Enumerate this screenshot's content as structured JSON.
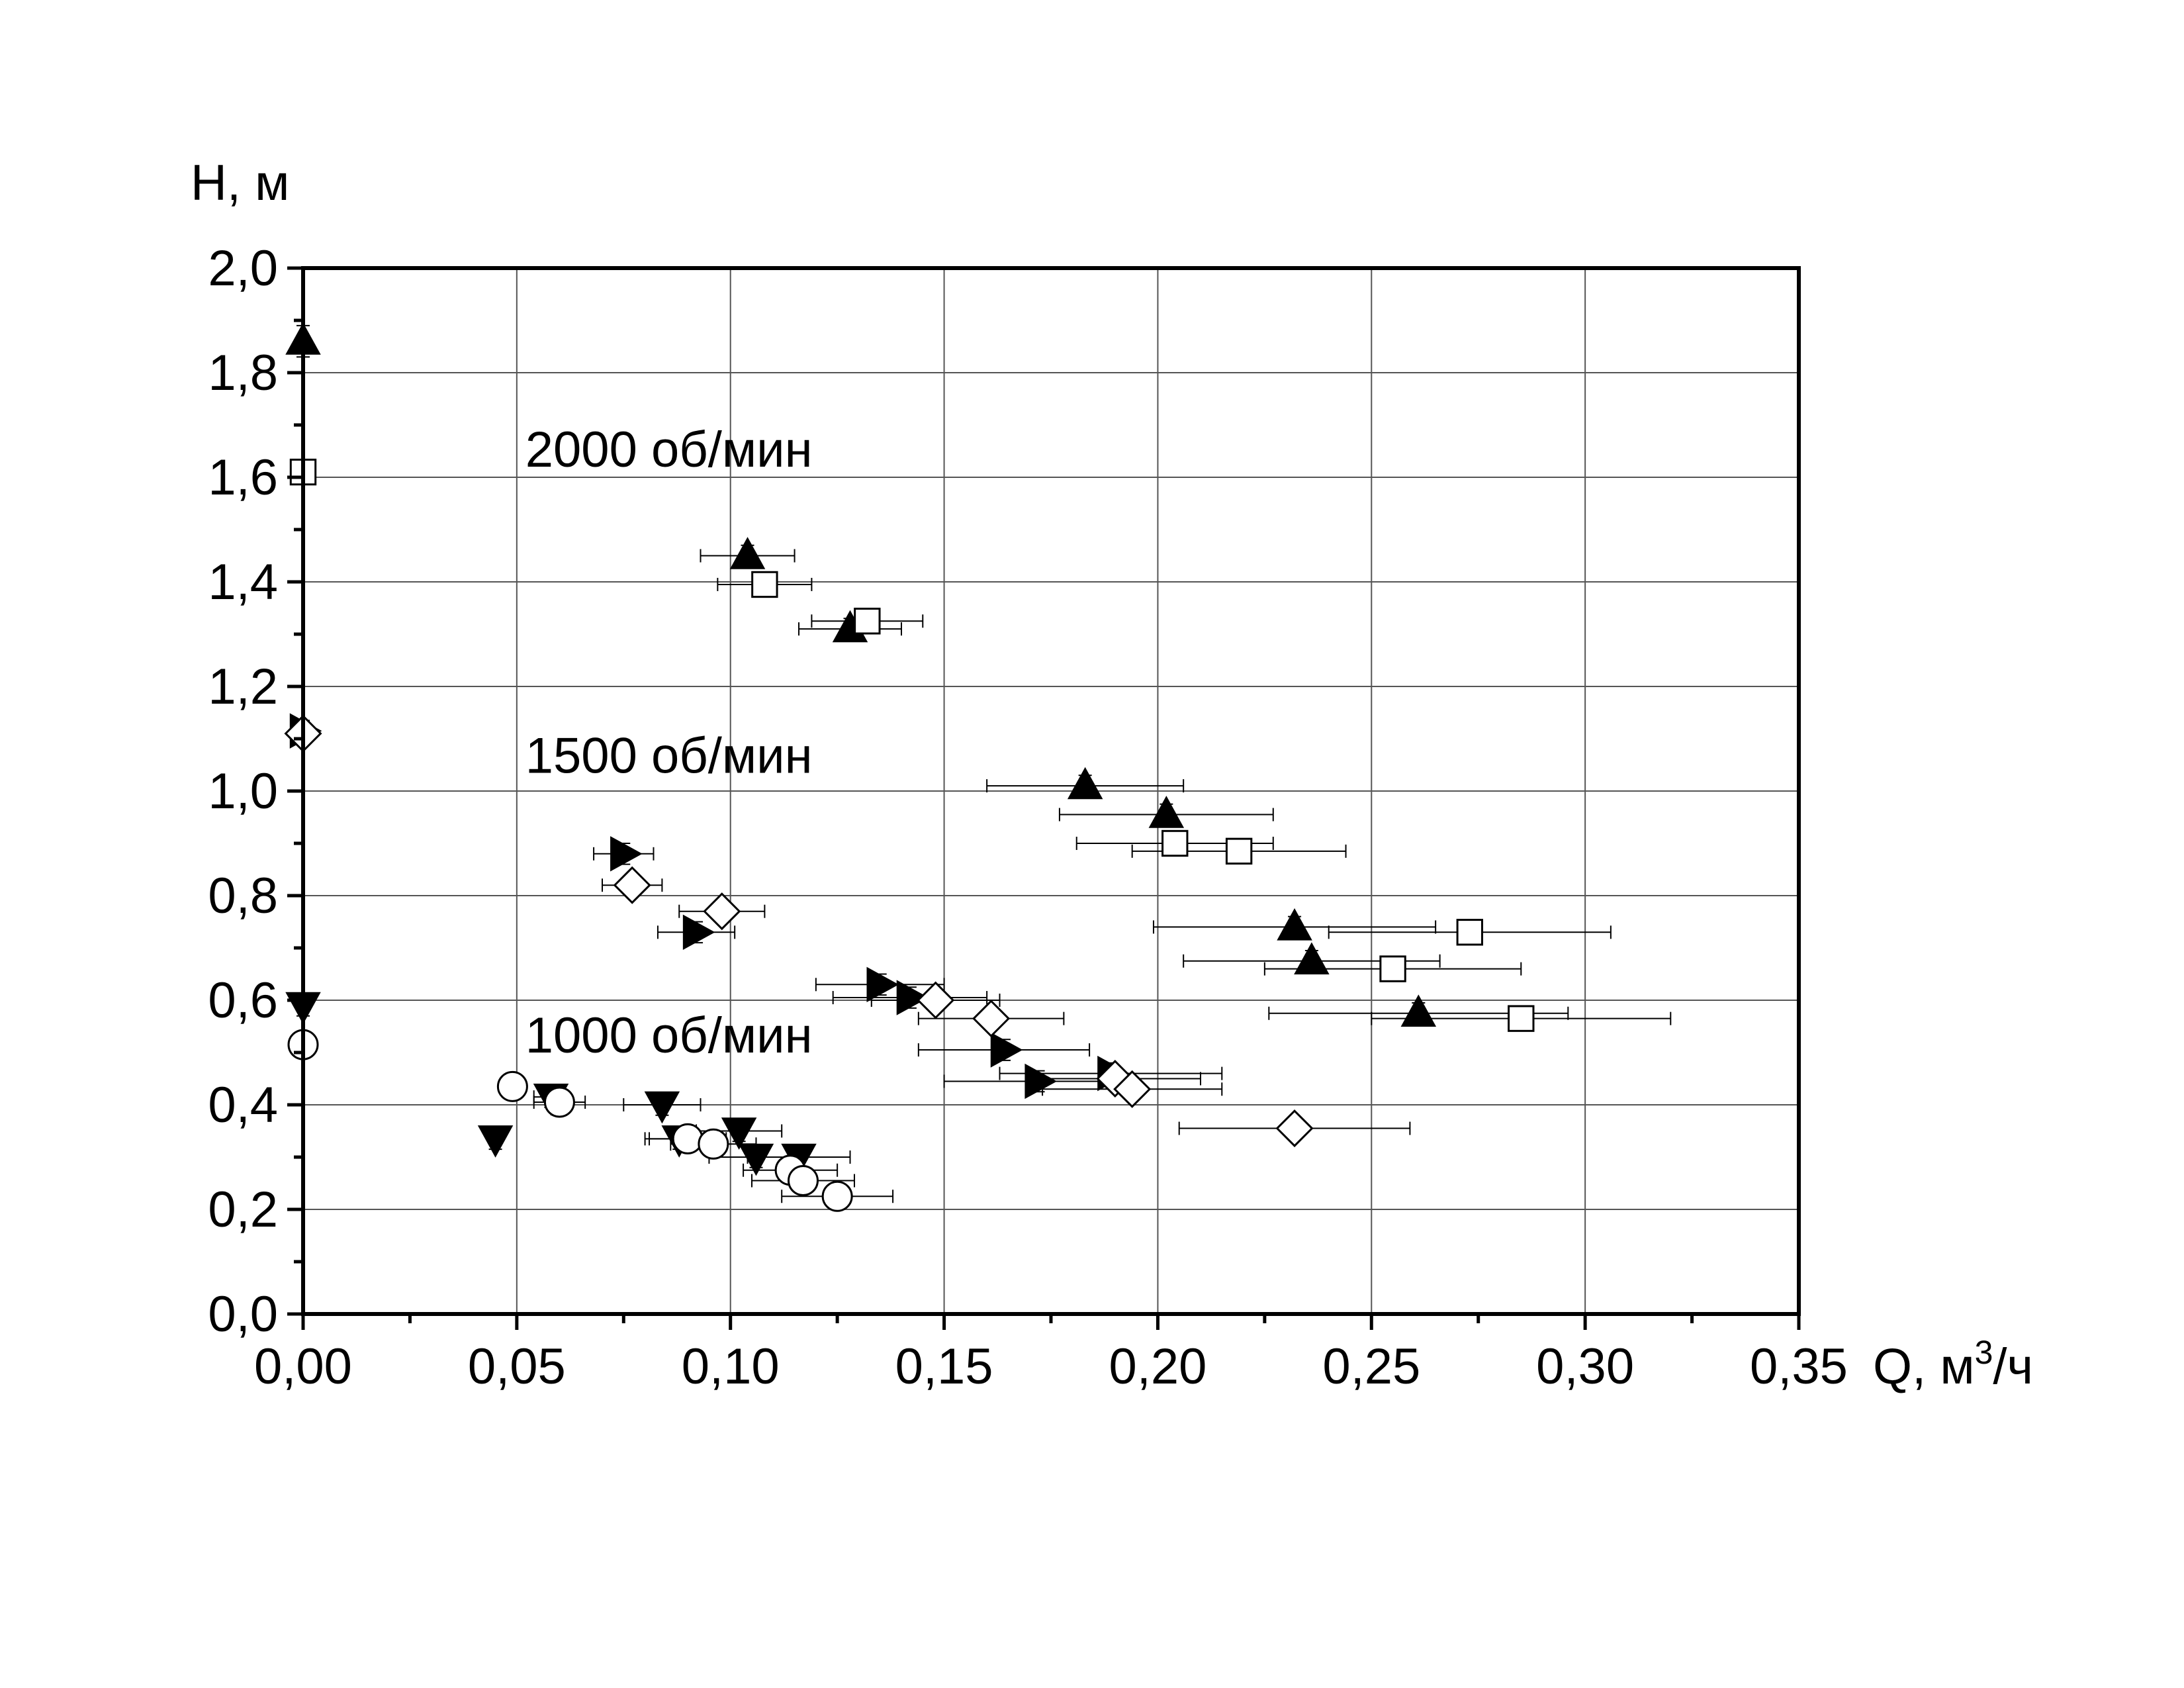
{
  "chart_data": {
    "type": "scatter",
    "xlabel": "Q, м³/ч",
    "ylabel": "H, м",
    "xlim": [
      0,
      0.35
    ],
    "ylim": [
      0,
      2.0
    ],
    "x_ticks": [
      {
        "v": 0.0,
        "label": "0,00"
      },
      {
        "v": 0.05,
        "label": "0,05"
      },
      {
        "v": 0.1,
        "label": "0,10"
      },
      {
        "v": 0.15,
        "label": "0,15"
      },
      {
        "v": 0.2,
        "label": "0,20"
      },
      {
        "v": 0.25,
        "label": "0,25"
      },
      {
        "v": 0.3,
        "label": "0,30"
      },
      {
        "v": 0.35,
        "label": "0,35"
      }
    ],
    "y_ticks": [
      {
        "v": 0.0,
        "label": "0,0"
      },
      {
        "v": 0.2,
        "label": "0,2"
      },
      {
        "v": 0.4,
        "label": "0,4"
      },
      {
        "v": 0.6,
        "label": "0,6"
      },
      {
        "v": 0.8,
        "label": "0,8"
      },
      {
        "v": 1.0,
        "label": "1,0"
      },
      {
        "v": 1.2,
        "label": "1,2"
      },
      {
        "v": 1.4,
        "label": "1,4"
      },
      {
        "v": 1.6,
        "label": "1,6"
      },
      {
        "v": 1.8,
        "label": "1,8"
      },
      {
        "v": 2.0,
        "label": "2,0"
      }
    ],
    "grid": true,
    "annotations": [
      {
        "text": "2000 об/мин",
        "x": 0.052,
        "y": 1.62
      },
      {
        "text": "1500 об/мин",
        "x": 0.052,
        "y": 1.035
      },
      {
        "text": "1000 об/мин",
        "x": 0.052,
        "y": 0.5
      }
    ],
    "series": [
      {
        "marker": "triangle-up",
        "fill": "black",
        "points": [
          {
            "x": 0.0,
            "y": 1.86,
            "xerr": 0,
            "yerr": 0.03
          },
          {
            "x": 0.104,
            "y": 1.45,
            "xerr": 0.011,
            "yerr": 0.02
          },
          {
            "x": 0.128,
            "y": 1.31,
            "xerr": 0.012,
            "yerr": 0.02
          },
          {
            "x": 0.183,
            "y": 1.01,
            "xerr": 0.023,
            "yerr": 0.02
          },
          {
            "x": 0.202,
            "y": 0.955,
            "xerr": 0.025,
            "yerr": 0.02
          },
          {
            "x": 0.232,
            "y": 0.74,
            "xerr": 0.033,
            "yerr": 0.02
          },
          {
            "x": 0.236,
            "y": 0.675,
            "xerr": 0.03,
            "yerr": 0.02
          },
          {
            "x": 0.261,
            "y": 0.575,
            "xerr": 0.035,
            "yerr": 0.02
          }
        ]
      },
      {
        "marker": "square",
        "fill": "white",
        "points": [
          {
            "x": 0.0,
            "y": 1.61,
            "xerr": 0,
            "yerr": 0.02
          },
          {
            "x": 0.108,
            "y": 1.395,
            "xerr": 0.011,
            "yerr": 0.02
          },
          {
            "x": 0.132,
            "y": 1.325,
            "xerr": 0.013,
            "yerr": 0.02
          },
          {
            "x": 0.204,
            "y": 0.9,
            "xerr": 0.023,
            "yerr": 0.02
          },
          {
            "x": 0.219,
            "y": 0.885,
            "xerr": 0.025,
            "yerr": 0.02
          },
          {
            "x": 0.255,
            "y": 0.66,
            "xerr": 0.03,
            "yerr": 0.02
          },
          {
            "x": 0.273,
            "y": 0.73,
            "xerr": 0.033,
            "yerr": 0.02
          },
          {
            "x": 0.285,
            "y": 0.565,
            "xerr": 0.035,
            "yerr": 0.02
          }
        ]
      },
      {
        "marker": "triangle-right",
        "fill": "black",
        "points": [
          {
            "x": 0.0,
            "y": 1.115,
            "xerr": 0,
            "yerr": 0.02
          },
          {
            "x": 0.075,
            "y": 0.88,
            "xerr": 0.007,
            "yerr": 0.02
          },
          {
            "x": 0.092,
            "y": 0.73,
            "xerr": 0.009,
            "yerr": 0.02
          },
          {
            "x": 0.135,
            "y": 0.63,
            "xerr": 0.015,
            "yerr": 0.02
          },
          {
            "x": 0.142,
            "y": 0.605,
            "xerr": 0.018,
            "yerr": 0.02
          },
          {
            "x": 0.164,
            "y": 0.505,
            "xerr": 0.02,
            "yerr": 0.02
          },
          {
            "x": 0.172,
            "y": 0.445,
            "xerr": 0.022,
            "yerr": 0.02
          },
          {
            "x": 0.189,
            "y": 0.46,
            "xerr": 0.026,
            "yerr": 0.02
          }
        ]
      },
      {
        "marker": "diamond",
        "fill": "white",
        "points": [
          {
            "x": 0.0,
            "y": 1.11,
            "xerr": 0,
            "yerr": 0.02
          },
          {
            "x": 0.077,
            "y": 0.82,
            "xerr": 0.007,
            "yerr": 0.02
          },
          {
            "x": 0.098,
            "y": 0.77,
            "xerr": 0.01,
            "yerr": 0.02
          },
          {
            "x": 0.148,
            "y": 0.6,
            "xerr": 0.015,
            "yerr": 0.02
          },
          {
            "x": 0.161,
            "y": 0.565,
            "xerr": 0.017,
            "yerr": 0.02
          },
          {
            "x": 0.19,
            "y": 0.45,
            "xerr": 0.02,
            "yerr": 0.02
          },
          {
            "x": 0.194,
            "y": 0.43,
            "xerr": 0.021,
            "yerr": 0.02
          },
          {
            "x": 0.232,
            "y": 0.355,
            "xerr": 0.027,
            "yerr": 0.02
          }
        ]
      },
      {
        "marker": "triangle-down",
        "fill": "black",
        "points": [
          {
            "x": 0.0,
            "y": 0.59,
            "xerr": 0,
            "yerr": 0.02
          },
          {
            "x": 0.045,
            "y": 0.335,
            "xerr": 0,
            "yerr": 0.02
          },
          {
            "x": 0.058,
            "y": 0.415,
            "xerr": 0.004,
            "yerr": 0.02
          },
          {
            "x": 0.084,
            "y": 0.4,
            "xerr": 0.009,
            "yerr": 0.02
          },
          {
            "x": 0.088,
            "y": 0.335,
            "xerr": 0.008,
            "yerr": 0.02
          },
          {
            "x": 0.102,
            "y": 0.35,
            "xerr": 0.01,
            "yerr": 0.02
          },
          {
            "x": 0.106,
            "y": 0.3,
            "xerr": 0.011,
            "yerr": 0.02
          },
          {
            "x": 0.116,
            "y": 0.3,
            "xerr": 0.012,
            "yerr": 0.02
          }
        ]
      },
      {
        "marker": "circle",
        "fill": "white",
        "points": [
          {
            "x": 0.0,
            "y": 0.515,
            "xerr": 0,
            "yerr": 0.02
          },
          {
            "x": 0.049,
            "y": 0.435,
            "xerr": 0,
            "yerr": 0.02
          },
          {
            "x": 0.06,
            "y": 0.405,
            "xerr": 0.006,
            "yerr": 0.02
          },
          {
            "x": 0.09,
            "y": 0.335,
            "xerr": 0.009,
            "yerr": 0.02
          },
          {
            "x": 0.096,
            "y": 0.325,
            "xerr": 0.01,
            "yerr": 0.02
          },
          {
            "x": 0.114,
            "y": 0.275,
            "xerr": 0.011,
            "yerr": 0.02
          },
          {
            "x": 0.117,
            "y": 0.255,
            "xerr": 0.012,
            "yerr": 0.02
          },
          {
            "x": 0.125,
            "y": 0.225,
            "xerr": 0.013,
            "yerr": 0.02
          }
        ]
      }
    ]
  }
}
